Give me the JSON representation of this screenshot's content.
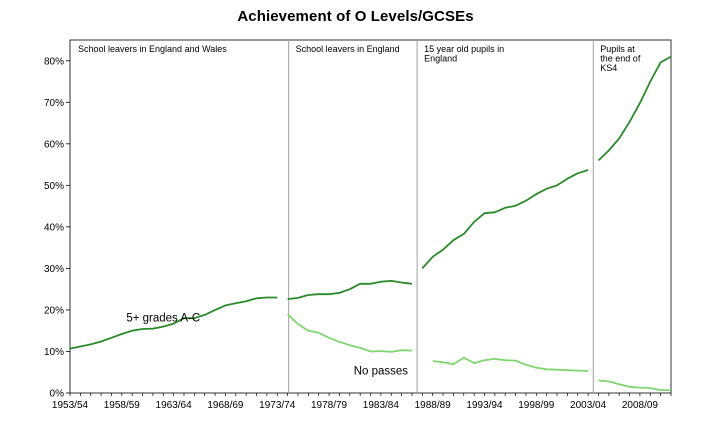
{
  "chart_data": {
    "type": "line",
    "title": "Achievement of O Levels/GCSEs",
    "xlabel": "",
    "ylabel": "",
    "ylim": [
      0,
      80
    ],
    "yticks": [
      0,
      10,
      20,
      30,
      40,
      50,
      60,
      70,
      80
    ],
    "ytick_labels": [
      "0%",
      "10%",
      "20%",
      "30%",
      "40%",
      "50%",
      "60%",
      "70%",
      "80%"
    ],
    "xlim": [
      1953,
      2011
    ],
    "xticks": [
      1953,
      1958,
      1963,
      1968,
      1973,
      1978,
      1983,
      1988,
      1993,
      1998,
      2003,
      2008
    ],
    "xtick_labels": [
      "1953/54",
      "1958/59",
      "1963/64",
      "1968/69",
      "1973/74",
      "1978/79",
      "1983/84",
      "1988/89",
      "1993/94",
      "1998/99",
      "2003/04",
      "2008/09"
    ],
    "region_breaks": [
      1974.1,
      1986.5,
      2003.5
    ],
    "regions": [
      {
        "lines": [
          "School leavers in England and Wales"
        ]
      },
      {
        "lines": [
          "School leavers in England"
        ]
      },
      {
        "lines": [
          "15 year old pupils in",
          "England"
        ]
      },
      {
        "lines": [
          "Pupils at",
          "the end of",
          "KS4"
        ]
      }
    ],
    "series": [
      {
        "name": "5+ grades A-C",
        "label": "5+ grades A-C",
        "color": "#2a8a2a",
        "segments": [
          {
            "x": [
              1953,
              1954,
              1955,
              1956,
              1957,
              1958,
              1959,
              1960,
              1961,
              1962,
              1963,
              1964,
              1965,
              1966,
              1967,
              1968,
              1969,
              1970,
              1971,
              1972,
              1973
            ],
            "y": [
              10.7,
              11.2,
              11.7,
              12.4,
              13.3,
              14.2,
              15.0,
              15.4,
              15.5,
              16.0,
              16.7,
              18.0,
              18.0,
              18.8,
              20.0,
              21.1,
              21.6,
              22.1,
              22.8,
              23.0,
              23.0
            ]
          },
          {
            "x": [
              1974,
              1975,
              1976,
              1977,
              1978,
              1979,
              1980,
              1981,
              1982,
              1983,
              1984,
              1985,
              1986
            ],
            "y": [
              22.6,
              22.9,
              23.6,
              23.8,
              23.8,
              24.1,
              25.0,
              26.3,
              26.3,
              26.8,
              27.0,
              26.6,
              26.3
            ]
          },
          {
            "x": [
              1987,
              1988,
              1989,
              1990,
              1991,
              1992,
              1993,
              1994,
              1995,
              1996,
              1997,
              1998,
              1999,
              2000,
              2001,
              2002,
              2003
            ],
            "y": [
              30.0,
              32.8,
              34.5,
              36.8,
              38.3,
              41.2,
              43.3,
              43.5,
              44.6,
              45.1,
              46.3,
              47.9,
              49.2,
              50.0,
              51.6,
              52.9,
              53.7
            ]
          },
          {
            "x": [
              2004,
              2005,
              2006,
              2007,
              2008,
              2009,
              2010,
              2011
            ],
            "y": [
              56.0,
              58.4,
              61.3,
              65.3,
              69.8,
              75.0,
              79.6,
              81.0
            ]
          }
        ]
      },
      {
        "name": "No passes",
        "label": "No passes",
        "color": "#7fd66e",
        "segments": [
          {
            "x": [
              1974,
              1975,
              1976,
              1977,
              1978,
              1979,
              1980,
              1981,
              1982,
              1983,
              1984,
              1985,
              1986
            ],
            "y": [
              19.0,
              16.6,
              15.0,
              14.5,
              13.3,
              12.3,
              11.5,
              10.9,
              10.0,
              10.1,
              9.9,
              10.3,
              10.2
            ]
          },
          {
            "x": [
              1988,
              1989,
              1990,
              1991,
              1992,
              1993,
              1994,
              1995,
              1996,
              1997,
              1998,
              1999,
              2000,
              2001,
              2002,
              2003
            ],
            "y": [
              7.7,
              7.4,
              6.9,
              8.5,
              7.2,
              7.9,
              8.2,
              7.9,
              7.8,
              6.8,
              6.1,
              5.7,
              5.6,
              5.5,
              5.4,
              5.3
            ]
          },
          {
            "x": [
              2004,
              2005,
              2006,
              2007,
              2008,
              2009,
              2010,
              2011
            ],
            "y": [
              3.0,
              2.8,
              2.1,
              1.5,
              1.3,
              1.2,
              0.7,
              0.7
            ]
          }
        ]
      }
    ]
  }
}
